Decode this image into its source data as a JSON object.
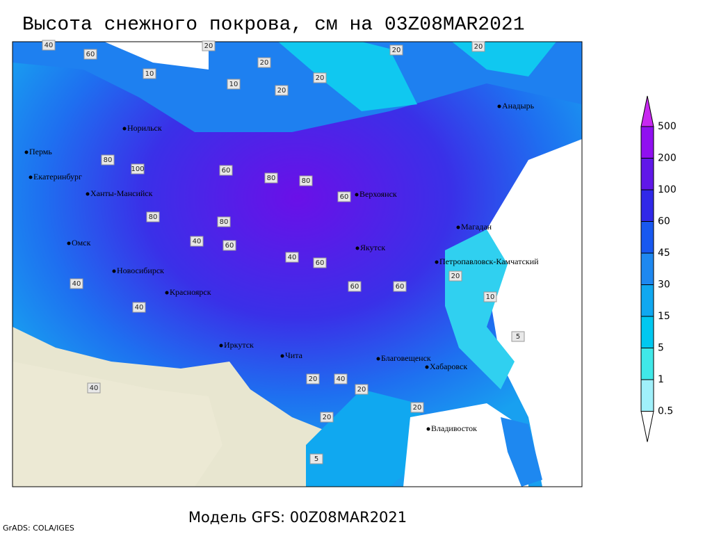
{
  "title": "Высота снежного покрова, см на 03Z08MAR2021",
  "colorbar": {
    "levels": [
      0.5,
      1,
      5,
      15,
      30,
      45,
      60,
      100,
      200,
      500
    ],
    "colors": [
      "#ffffff",
      "#a0f0fa",
      "#40e8e8",
      "#00c8f0",
      "#10a8f0",
      "#1e88f0",
      "#1858f0",
      "#3028e8",
      "#6018e8",
      "#9010f0",
      "#c828f0"
    ]
  },
  "cities": [
    "Норильск",
    "Пермь",
    "Екатеринбург",
    "Ханты-Мансийск",
    "Омск",
    "Новосибирск",
    "Красноярск",
    "Иркутск",
    "Чита",
    "Якутск",
    "Верхоянск",
    "Магадан",
    "Анадырь",
    "Петропавловск-Камчатский",
    "Благовещенск",
    "Хабаровск",
    "Владивосток"
  ],
  "contour_labels": [
    40,
    60,
    10,
    20,
    20,
    20,
    20,
    20,
    80,
    100,
    60,
    80,
    80,
    60,
    80,
    80,
    60,
    40,
    40,
    60,
    60,
    40,
    60,
    40,
    20,
    10,
    20,
    5,
    40,
    20,
    20,
    5,
    10,
    20,
    40,
    20
  ],
  "footer": {
    "model": "Модель GFS: 00Z08MAR2021",
    "credit": "GrADS: COLA/IGES"
  }
}
